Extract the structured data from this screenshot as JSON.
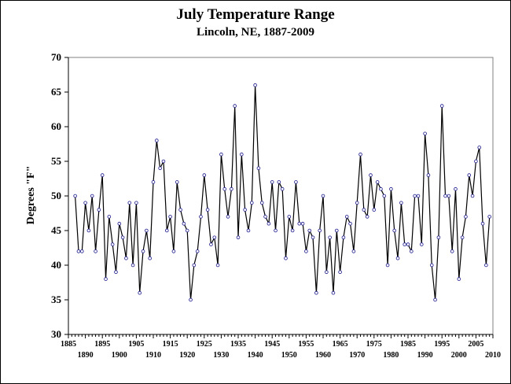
{
  "chart_data": {
    "type": "line",
    "title": "July Temperature Range",
    "subtitle": "Lincoln, NE, 1887-2009",
    "ylabel": "Degrees \"F\"",
    "xlabel": "",
    "ylim": [
      30,
      70
    ],
    "xlim": [
      1885,
      2010
    ],
    "yticks": [
      "30",
      "35",
      "40",
      "45",
      "50",
      "55",
      "60",
      "65",
      "70"
    ],
    "xticks_top": [
      "1885",
      "1895",
      "1905",
      "1915",
      "1925",
      "1935",
      "1945",
      "1955",
      "1965",
      "1975",
      "1985",
      "1995",
      "2005"
    ],
    "xticks_bottom": [
      "1890",
      "1900",
      "1910",
      "1920",
      "1930",
      "1940",
      "1950",
      "1960",
      "1970",
      "1980",
      "1990",
      "2000",
      "2010"
    ],
    "grid": false,
    "legend": "none",
    "colors": {
      "line": "#000000",
      "marker_fill": "#ffffff",
      "marker_stroke": "#1a1a8c"
    },
    "x": [
      1887,
      1888,
      1889,
      1890,
      1891,
      1892,
      1893,
      1894,
      1895,
      1896,
      1897,
      1898,
      1899,
      1900,
      1901,
      1902,
      1903,
      1904,
      1905,
      1906,
      1907,
      1908,
      1909,
      1910,
      1911,
      1912,
      1913,
      1914,
      1915,
      1916,
      1917,
      1918,
      1919,
      1920,
      1921,
      1922,
      1923,
      1924,
      1925,
      1926,
      1927,
      1928,
      1929,
      1930,
      1931,
      1932,
      1933,
      1934,
      1935,
      1936,
      1937,
      1938,
      1939,
      1940,
      1941,
      1942,
      1943,
      1944,
      1945,
      1946,
      1947,
      1948,
      1949,
      1950,
      1951,
      1952,
      1953,
      1954,
      1955,
      1956,
      1957,
      1958,
      1959,
      1960,
      1961,
      1962,
      1963,
      1964,
      1965,
      1966,
      1967,
      1968,
      1969,
      1970,
      1971,
      1972,
      1973,
      1974,
      1975,
      1976,
      1977,
      1978,
      1979,
      1980,
      1981,
      1982,
      1983,
      1984,
      1985,
      1986,
      1987,
      1988,
      1989,
      1990,
      1991,
      1992,
      1993,
      1994,
      1995,
      1996,
      1997,
      1998,
      1999,
      2000,
      2001,
      2002,
      2003,
      2004,
      2005,
      2006,
      2007,
      2008,
      2009
    ],
    "y": [
      50,
      42,
      42,
      49,
      45,
      50,
      42,
      48,
      53,
      38,
      47,
      43,
      39,
      46,
      44,
      41,
      49,
      40,
      49,
      36,
      42,
      45,
      41,
      52,
      58,
      54,
      55,
      45,
      47,
      42,
      52,
      48,
      46,
      45,
      35,
      40,
      42,
      47,
      53,
      48,
      43,
      44,
      40,
      56,
      51,
      47,
      51,
      63,
      44,
      56,
      48,
      45,
      49,
      66,
      54,
      49,
      47,
      46,
      52,
      45,
      52,
      51,
      41,
      47,
      45,
      52,
      46,
      46,
      42,
      45,
      44,
      36,
      45,
      50,
      39,
      44,
      36,
      45,
      39,
      44,
      47,
      46,
      42,
      49,
      56,
      48,
      47,
      53,
      48,
      52,
      51,
      50,
      40,
      51,
      45,
      41,
      49,
      43,
      43,
      42,
      50,
      50,
      43,
      59,
      53,
      40,
      35,
      44,
      63,
      50,
      50,
      42,
      51,
      38,
      44,
      47,
      53,
      50,
      55,
      57,
      46,
      40,
      47
    ]
  }
}
